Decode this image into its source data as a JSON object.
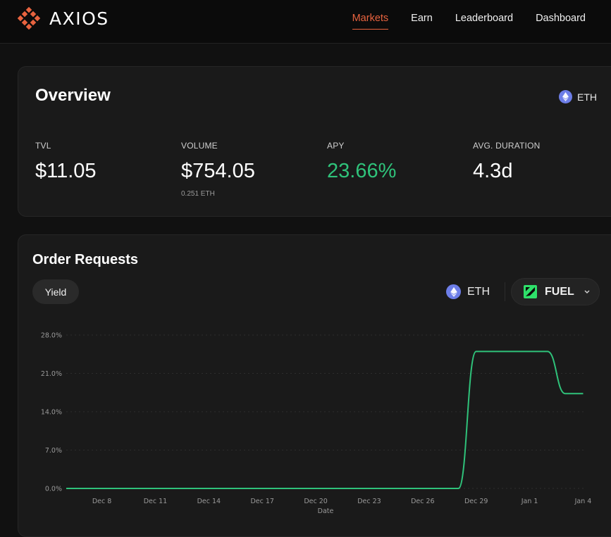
{
  "brand": {
    "name": "AXIOS",
    "accent": "#e8633f"
  },
  "nav": {
    "items": [
      {
        "label": "Markets",
        "active": true
      },
      {
        "label": "Earn",
        "active": false
      },
      {
        "label": "Leaderboard",
        "active": false
      },
      {
        "label": "Dashboard",
        "active": false
      }
    ]
  },
  "overview": {
    "title": "Overview",
    "asset": "ETH",
    "stats": [
      {
        "label": "TVL",
        "value": "$11.05",
        "sub": ""
      },
      {
        "label": "VOLUME",
        "value": "$754.05",
        "sub": "0.251 ETH"
      },
      {
        "label": "APY",
        "value": "23.66%",
        "sub": "",
        "color": "#2fc27a"
      },
      {
        "label": "AVG. DURATION",
        "value": "4.3d",
        "sub": ""
      }
    ]
  },
  "orders": {
    "title": "Order Requests",
    "tab": "Yield",
    "asset": "ETH",
    "market": "FUEL"
  },
  "chart_data": {
    "type": "line",
    "xlabel": "Date",
    "ylabel": "",
    "ylim": [
      0,
      28
    ],
    "yticks": [
      "0.0%",
      "7.0%",
      "14.0%",
      "21.0%",
      "28.0%"
    ],
    "yticks_values": [
      0,
      7,
      14,
      21,
      28
    ],
    "xticks": [
      "Dec 8",
      "Dec 11",
      "Dec 14",
      "Dec 17",
      "Dec 20",
      "Dec 23",
      "Dec 26",
      "Dec 29",
      "Jan 1",
      "Jan 4"
    ],
    "grid": true,
    "line_color": "#2fc27a",
    "series": [
      {
        "name": "",
        "x": [
          "Dec 6",
          "Dec 8",
          "Dec 11",
          "Dec 14",
          "Dec 17",
          "Dec 20",
          "Dec 23",
          "Dec 26",
          "Dec 28",
          "Dec 29",
          "Dec 30",
          "Dec 31",
          "Jan 1",
          "Jan 2",
          "Jan 3",
          "Jan 4"
        ],
        "values": [
          0,
          0,
          0,
          0,
          0,
          0,
          0,
          0,
          0,
          25,
          25,
          25,
          25,
          25,
          17.3,
          17.3
        ]
      }
    ]
  }
}
